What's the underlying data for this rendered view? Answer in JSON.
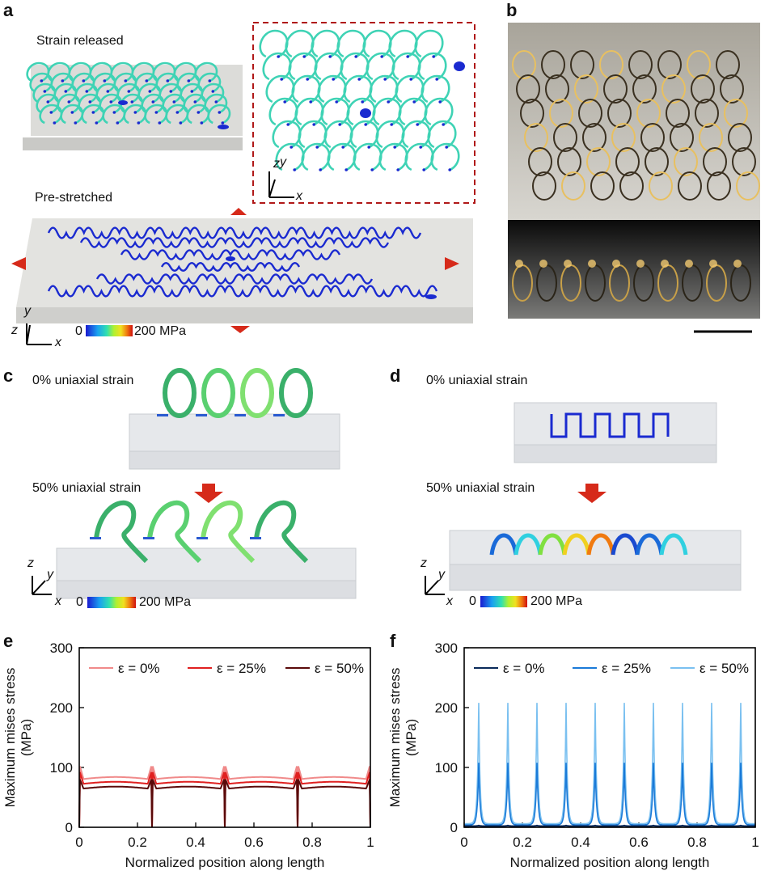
{
  "panels": {
    "a": {
      "label": "a",
      "strain_released": "Strain released",
      "pre_stretched": "Pre-stretched",
      "axes": {
        "z": "z",
        "y": "y",
        "x": "x"
      },
      "colorbar": {
        "min": "0",
        "max": "200 MPa"
      }
    },
    "b": {
      "label": "b"
    },
    "c": {
      "label": "c",
      "top": "0% uniaxial strain",
      "bottom": "50% uniaxial strain",
      "axes": {
        "z": "z",
        "y": "y",
        "x": "x"
      },
      "colorbar": {
        "min": "0",
        "max": "200 MPa"
      }
    },
    "d": {
      "label": "d",
      "top": "0% uniaxial strain",
      "bottom": "50% uniaxial strain",
      "axes": {
        "z": "z",
        "y": "y",
        "x": "x"
      },
      "colorbar": {
        "min": "0",
        "max": "200 MPa"
      }
    },
    "e": {
      "label": "e"
    },
    "f": {
      "label": "f"
    }
  },
  "colors": {
    "helix": "#3fd3b5",
    "wire_blue": "#1a2ad0",
    "arrow_red": "#d62a1a",
    "dashed_box": "#b01818",
    "e_series": [
      "#f08a8a",
      "#e02020",
      "#5a0a0a"
    ],
    "f_series": [
      "#0a2a5a",
      "#1a7ad8",
      "#7ac0f0"
    ]
  },
  "chart_data": [
    {
      "type": "line",
      "panel": "e",
      "xlabel": "Normalized position along length",
      "ylabel": "Maximum mises stress (MPa)",
      "xlim": [
        0,
        1
      ],
      "ylim": [
        0,
        300
      ],
      "xticks": [
        "0",
        "0.2",
        "0.4",
        "0.6",
        "0.8",
        "1"
      ],
      "yticks": [
        "0",
        "100",
        "200",
        "300"
      ],
      "dip_positions": [
        0,
        0.25,
        0.5,
        0.75,
        1
      ],
      "series": [
        {
          "name": "ε = 0%",
          "edge_peak": 102,
          "plateau": 80,
          "min": 0
        },
        {
          "name": "ε = 25%",
          "edge_peak": 92,
          "plateau": 72,
          "min": 0
        },
        {
          "name": "ε = 50%",
          "edge_peak": 80,
          "plateau": 64,
          "min": 0
        }
      ]
    },
    {
      "type": "line",
      "panel": "f",
      "xlabel": "Normalized position along length",
      "ylabel": "Maximum mises stress (MPa)",
      "xlim": [
        0,
        1
      ],
      "ylim": [
        0,
        300
      ],
      "xticks": [
        "0",
        "0.2",
        "0.4",
        "0.6",
        "0.8",
        "1"
      ],
      "yticks": [
        "0",
        "100",
        "200",
        "300"
      ],
      "peak_positions": [
        0.05,
        0.15,
        0.25,
        0.35,
        0.45,
        0.55,
        0.65,
        0.75,
        0.85,
        0.95
      ],
      "series": [
        {
          "name": "ε = 0%",
          "peak": 3,
          "base": 2
        },
        {
          "name": "ε =  25%",
          "peak": 108,
          "base": 4
        },
        {
          "name": "ε = 50%",
          "peak": 208,
          "base": 6
        }
      ]
    }
  ]
}
